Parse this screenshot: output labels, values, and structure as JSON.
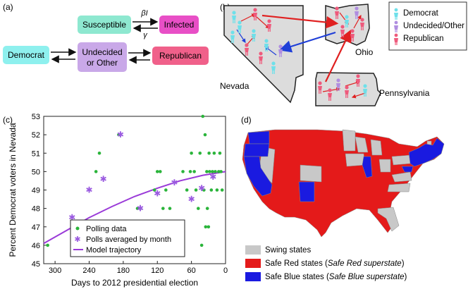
{
  "panels": {
    "a": {
      "label": "(a)",
      "susceptible": "Susceptible",
      "infected": "Infected",
      "beta_label": "βI",
      "gamma_label": "γ",
      "democrat": "Democrat",
      "undecided_line1": "Undecided",
      "undecided_line2": "or Other",
      "republican": "Republican",
      "colors": {
        "susceptible": "#8ee8d0",
        "infected": "#e84fc6",
        "democrat": "#8ef0ee",
        "undecided": "#c9a8e8",
        "republican": "#f0608a"
      }
    },
    "b": {
      "label": "(b)",
      "states": {
        "nevada": "Nevada",
        "ohio": "Ohio",
        "pennsylvania": "Pennsylvania"
      },
      "legend": [
        {
          "label": "Democrat",
          "color": "#6ee0ea"
        },
        {
          "label": "Undecided/Other",
          "color": "#b08ee0"
        },
        {
          "label": "Republican",
          "color": "#ee5a7c"
        }
      ],
      "colors": {
        "state_fill": "#dcdcdc",
        "red_arrow": "#e02020",
        "blue_arrow": "#1f3fd8"
      }
    },
    "c": {
      "label": "(c)",
      "legend": [
        {
          "label": "Polling data",
          "marker": "dot",
          "color": "#2ab43a"
        },
        {
          "label": "Polls averaged by month",
          "marker": "star",
          "color": "#9a5ae0"
        },
        {
          "label": "Model trajectory",
          "marker": "line",
          "color": "#9a3ad8"
        }
      ]
    },
    "d": {
      "label": "(d)",
      "legend": [
        {
          "label": "Swing states",
          "suffix": "",
          "color": "#c8c8c8"
        },
        {
          "label": "Safe Red states (",
          "suffix": "Safe Red superstate",
          "close": ")",
          "color": "#e41a1a"
        },
        {
          "label": "Safe Blue states (",
          "suffix": "Safe Blue superstate",
          "close": ")",
          "color": "#1a1ae0"
        }
      ]
    }
  },
  "chart_data": {
    "type": "scatter",
    "xlabel": "Days to 2012 presidential election",
    "ylabel": "Percent Democrat voters in Nevada",
    "xlim": [
      320,
      0
    ],
    "ylim": [
      45,
      53
    ],
    "xticks": [
      300,
      240,
      180,
      120,
      60,
      0
    ],
    "yticks": [
      45,
      46,
      47,
      48,
      49,
      50,
      51,
      52,
      53
    ],
    "series": [
      {
        "name": "Polling data",
        "points": [
          [
            313,
            46
          ],
          [
            228,
            50
          ],
          [
            222,
            51
          ],
          [
            188,
            52
          ],
          [
            155,
            48
          ],
          [
            150,
            48
          ],
          [
            125,
            49
          ],
          [
            120,
            50
          ],
          [
            115,
            50
          ],
          [
            110,
            48
          ],
          [
            105,
            49
          ],
          [
            98,
            48
          ],
          [
            88,
            47
          ],
          [
            75,
            50
          ],
          [
            68,
            49
          ],
          [
            62,
            50
          ],
          [
            60,
            51
          ],
          [
            55,
            50
          ],
          [
            52,
            49
          ],
          [
            48,
            48
          ],
          [
            45,
            51
          ],
          [
            42,
            46
          ],
          [
            40,
            53
          ],
          [
            38,
            49
          ],
          [
            36,
            52
          ],
          [
            35,
            47
          ],
          [
            33,
            50
          ],
          [
            32,
            48
          ],
          [
            30,
            47
          ],
          [
            29,
            51
          ],
          [
            28,
            50
          ],
          [
            25,
            49
          ],
          [
            23,
            50
          ],
          [
            20,
            51
          ],
          [
            18,
            50
          ],
          [
            15,
            49
          ],
          [
            12,
            50
          ],
          [
            10,
            51
          ],
          [
            8,
            50
          ],
          [
            6,
            49
          ]
        ]
      },
      {
        "name": "Polls averaged by month",
        "points": [
          [
            270,
            47.5
          ],
          [
            240,
            49
          ],
          [
            215,
            49.6
          ],
          [
            185,
            52
          ],
          [
            150,
            48
          ],
          [
            120,
            48.8
          ],
          [
            90,
            49.4
          ],
          [
            60,
            48.5
          ],
          [
            42,
            49.1
          ],
          [
            22,
            49.7
          ]
        ]
      },
      {
        "name": "Model trajectory",
        "points": [
          [
            320,
            46.1
          ],
          [
            280,
            46.8
          ],
          [
            240,
            47.5
          ],
          [
            200,
            48.1
          ],
          [
            160,
            48.65
          ],
          [
            120,
            49.1
          ],
          [
            80,
            49.5
          ],
          [
            40,
            49.8
          ],
          [
            0,
            50
          ]
        ]
      }
    ]
  }
}
